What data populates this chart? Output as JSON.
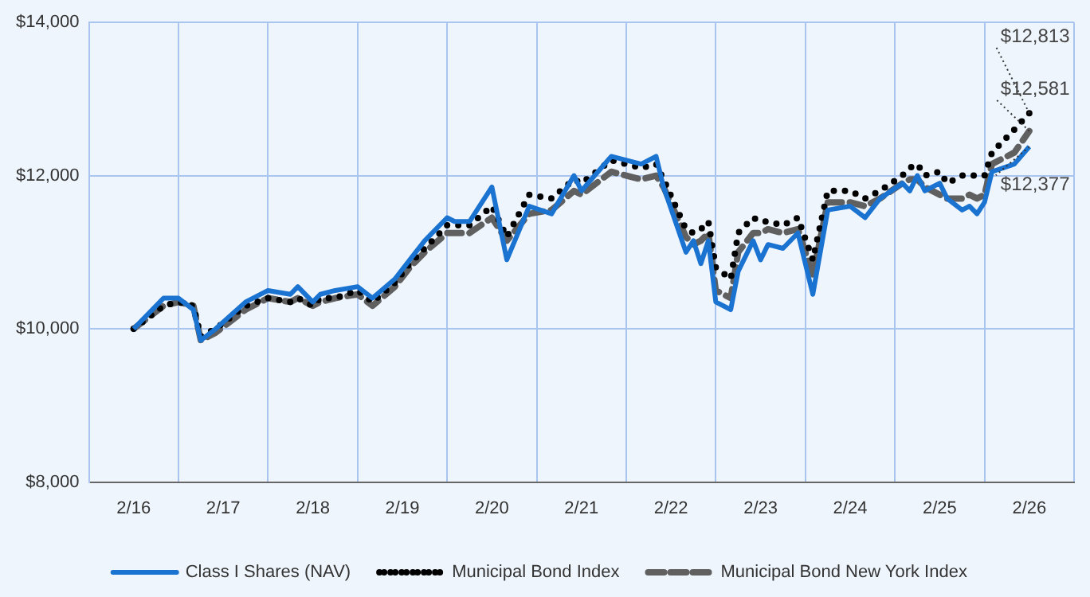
{
  "chart_data": {
    "type": "line",
    "x": [
      "2016-02",
      "2016-06",
      "2016-08",
      "2016-10",
      "2016-11",
      "2017-01",
      "2017-05",
      "2017-08",
      "2017-11",
      "2017-12",
      "2018-02",
      "2018-03",
      "2018-05",
      "2018-08",
      "2018-10",
      "2019-01",
      "2019-03",
      "2019-05",
      "2019-08",
      "2019-09",
      "2019-11",
      "2020-02",
      "2020-04",
      "2020-07",
      "2020-10",
      "2021-01",
      "2021-02",
      "2021-06",
      "2021-10",
      "2021-12",
      "2022-01",
      "2022-04",
      "2022-05",
      "2022-06",
      "2022-07",
      "2022-08",
      "2022-10",
      "2022-11",
      "2023-01",
      "2023-02",
      "2023-03",
      "2023-05",
      "2023-07",
      "2023-09",
      "2023-11",
      "2024-02",
      "2024-04",
      "2024-06",
      "2024-09",
      "2024-10",
      "2024-11",
      "2024-12",
      "2025-02",
      "2025-03",
      "2025-05",
      "2025-06",
      "2025-07",
      "2025-08",
      "2025-09",
      "2025-12",
      "2026-02"
    ],
    "series": [
      {
        "name": "Class I Shares (NAV)",
        "color": "#1a73d0",
        "line_style": "solid",
        "values": [
          10000,
          10400,
          10400,
          10250,
          9850,
          10000,
          10350,
          10500,
          10450,
          10550,
          10350,
          10450,
          10500,
          10550,
          10400,
          10650,
          10900,
          11150,
          11450,
          11400,
          11400,
          11850,
          10900,
          11600,
          11500,
          12000,
          11800,
          12250,
          12150,
          12250,
          11850,
          11000,
          11150,
          10850,
          11150,
          10350,
          10250,
          10750,
          11150,
          10900,
          11100,
          11050,
          11250,
          10450,
          11550,
          11600,
          11450,
          11700,
          11900,
          11800,
          12000,
          11800,
          11900,
          11700,
          11550,
          11600,
          11500,
          11650,
          12050,
          12150,
          12377
        ]
      },
      {
        "name": "Municipal Bond Index",
        "color": "#000000",
        "line_style": "dotted",
        "values": [
          10000,
          10300,
          10350,
          10300,
          9900,
          10000,
          10300,
          10400,
          10350,
          10400,
          10300,
          10400,
          10400,
          10500,
          10350,
          10600,
          10850,
          11050,
          11350,
          11350,
          11350,
          11600,
          11200,
          11750,
          11700,
          11950,
          11900,
          12200,
          12100,
          12150,
          11950,
          11300,
          11250,
          11300,
          11400,
          10800,
          10650,
          11250,
          11450,
          11400,
          11400,
          11350,
          11450,
          10900,
          11800,
          11800,
          11700,
          11800,
          12000,
          12100,
          12150,
          12000,
          12050,
          11900,
          12000,
          12000,
          12000,
          12000,
          12300,
          12600,
          12813
        ]
      },
      {
        "name": "Municipal Bond New York Index",
        "color": "#606060",
        "line_style": "dashed",
        "values": [
          10000,
          10300,
          10350,
          10300,
          9850,
          9950,
          10250,
          10400,
          10350,
          10400,
          10300,
          10350,
          10400,
          10450,
          10300,
          10550,
          10800,
          11000,
          11250,
          11250,
          11250,
          11450,
          11150,
          11500,
          11550,
          11800,
          11750,
          12050,
          11950,
          12000,
          11850,
          11200,
          11100,
          11150,
          11250,
          10500,
          10400,
          11000,
          11250,
          11250,
          11300,
          11250,
          11300,
          10700,
          11650,
          11650,
          11600,
          11700,
          11900,
          11950,
          11950,
          11850,
          11750,
          11700,
          11700,
          11750,
          11700,
          11750,
          12150,
          12300,
          12581
        ]
      }
    ],
    "xlim": [
      "2015-08",
      "2026-08"
    ],
    "xticks": [
      {
        "value": "2016-02",
        "label": "2/16"
      },
      {
        "value": "2017-02",
        "label": "2/17"
      },
      {
        "value": "2018-02",
        "label": "2/18"
      },
      {
        "value": "2019-02",
        "label": "2/19"
      },
      {
        "value": "2020-02",
        "label": "2/20"
      },
      {
        "value": "2021-02",
        "label": "2/21"
      },
      {
        "value": "2022-02",
        "label": "2/22"
      },
      {
        "value": "2023-02",
        "label": "2/23"
      },
      {
        "value": "2024-02",
        "label": "2/24"
      },
      {
        "value": "2025-02",
        "label": "2/25"
      },
      {
        "value": "2026-02",
        "label": "2/26"
      }
    ],
    "ylim": [
      8000,
      14000
    ],
    "yticks": [
      {
        "value": 8000,
        "label": "$8,000"
      },
      {
        "value": 10000,
        "label": "$10,000"
      },
      {
        "value": 12000,
        "label": "$12,000"
      },
      {
        "value": 14000,
        "label": "$14,000"
      }
    ],
    "annotations": [
      {
        "text": "$12,813",
        "x": "2026-02",
        "y": 12813
      },
      {
        "text": "$12,581",
        "x": "2026-02",
        "y": 12581
      },
      {
        "text": "$12,377",
        "x": "2026-02",
        "y": 12377
      }
    ],
    "grid": true,
    "legend": "bottom",
    "marker": "none"
  }
}
